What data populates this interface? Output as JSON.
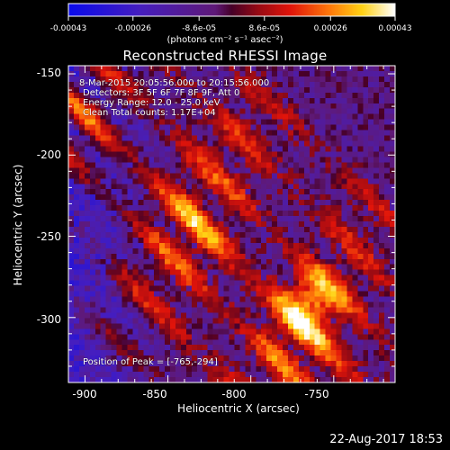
{
  "colorbar": {
    "ticks": [
      "-0.00043",
      "-0.00026",
      "-8.6e-05",
      "8.6e-05",
      "0.00026",
      "0.00043"
    ],
    "units_label": "(photons cm⁻² s⁻¹ asec⁻²)",
    "range": [
      -0.00043,
      0.00043
    ]
  },
  "title": "Reconstructed RHESSI Image",
  "annotations": {
    "time_range": "8-Mar-2015 20:05:56.000 to 20:15:56.000",
    "detectors": "Detectors: 3F 5F 6F 7F 8F 9F, Att 0",
    "energy_range": "Energy Range: 12.0 - 25.0 keV",
    "method_counts": "Clean    Total counts: 1.17E+04",
    "peak_position": "Position of Peak = [-765,-294]"
  },
  "axes": {
    "xlabel": "Heliocentric X (arcsec)",
    "ylabel": "Heliocentric Y (arcsec)",
    "xticks": [
      "-900",
      "-850",
      "-800",
      "-750"
    ],
    "yticks": [
      "-150",
      "-200",
      "-250",
      "-300"
    ],
    "xlim": [
      -910,
      -713
    ],
    "ylim": [
      -340,
      -145
    ]
  },
  "datestamp": "22-Aug-2017 18:53",
  "chart_data": {
    "type": "heatmap",
    "title": "Reconstructed RHESSI Image",
    "xlabel": "Heliocentric X (arcsec)",
    "ylabel": "Heliocentric Y (arcsec)",
    "xlim": [
      -910,
      -713
    ],
    "ylim": [
      -340,
      -145
    ],
    "colorbar_range": [
      -0.00043,
      0.00043
    ],
    "colormap": "blue-purple-red-yellow-white",
    "peak": [
      -765,
      -294
    ]
  }
}
